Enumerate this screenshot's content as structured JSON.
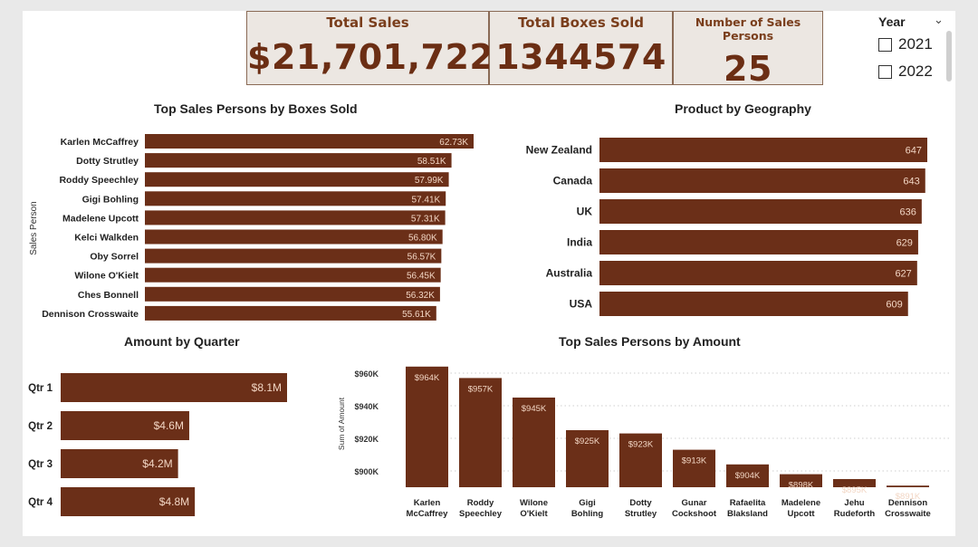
{
  "kpis": {
    "total_sales": {
      "title": "Total Sales",
      "value": "$21,701,722"
    },
    "total_boxes": {
      "title": "Total Boxes Sold",
      "value": "1344574"
    },
    "sales_persons": {
      "title": "Number of Sales Persons",
      "value": "25"
    }
  },
  "slicer": {
    "title": "Year",
    "options": [
      "2021",
      "2022"
    ]
  },
  "colors": {
    "bar": "#6b2f18",
    "label_light": "#f2d6c4",
    "kpi_text": "#6b2e14"
  },
  "chart_data": [
    {
      "type": "bar",
      "orientation": "horizontal",
      "title": "Top Sales Persons by Boxes Sold",
      "ylabel": "Sales Person",
      "categories": [
        "Karlen McCaffrey",
        "Dotty Strutley",
        "Roddy Speechley",
        "Gigi Bohling",
        "Madelene Upcott",
        "Kelci Walkden",
        "Oby Sorrel",
        "Wilone O'Kielt",
        "Ches Bonnell",
        "Dennison Crosswaite"
      ],
      "values": [
        62730,
        58510,
        57990,
        57410,
        57310,
        56800,
        56570,
        56450,
        56320,
        55610
      ],
      "labels": [
        "62.73K",
        "58.51K",
        "57.99K",
        "57.41K",
        "57.31K",
        "56.80K",
        "56.57K",
        "56.45K",
        "56.32K",
        "55.61K"
      ]
    },
    {
      "type": "bar",
      "orientation": "horizontal",
      "title": "Product by Geography",
      "categories": [
        "New Zealand",
        "Canada",
        "UK",
        "India",
        "Australia",
        "USA"
      ],
      "values": [
        647,
        643,
        636,
        629,
        627,
        609
      ],
      "labels": [
        "647",
        "643",
        "636",
        "629",
        "627",
        "609"
      ]
    },
    {
      "type": "bar",
      "orientation": "horizontal",
      "title": "Amount by Quarter",
      "categories": [
        "Qtr 1",
        "Qtr 2",
        "Qtr 3",
        "Qtr 4"
      ],
      "values": [
        8.1,
        4.6,
        4.2,
        4.8
      ],
      "labels": [
        "$8.1M",
        "$4.6M",
        "$4.2M",
        "$4.8M"
      ]
    },
    {
      "type": "bar",
      "orientation": "vertical",
      "title": "Top Sales Persons by Amount",
      "ylabel": "Sum of Amount",
      "categories": [
        "Karlen McCaffrey",
        "Roddy Speechley",
        "Wilone O'Kielt",
        "Gigi Bohling",
        "Dotty Strutley",
        "Gunar Cockshoot",
        "Rafaelita Blaksland",
        "Madelene Upcott",
        "Jehu Rudeforth",
        "Dennison Crosswaite"
      ],
      "values": [
        964,
        957,
        945,
        925,
        923,
        913,
        904,
        898,
        895,
        891
      ],
      "labels": [
        "$964K",
        "$957K",
        "$945K",
        "$925K",
        "$923K",
        "$913K",
        "$904K",
        "$898K",
        "$895K",
        "$891K"
      ],
      "ylim": [
        890,
        965
      ],
      "yticks": [
        900,
        920,
        940,
        960
      ],
      "ytick_labels": [
        "$900K",
        "$920K",
        "$940K",
        "$960K"
      ],
      "grid": true
    }
  ]
}
